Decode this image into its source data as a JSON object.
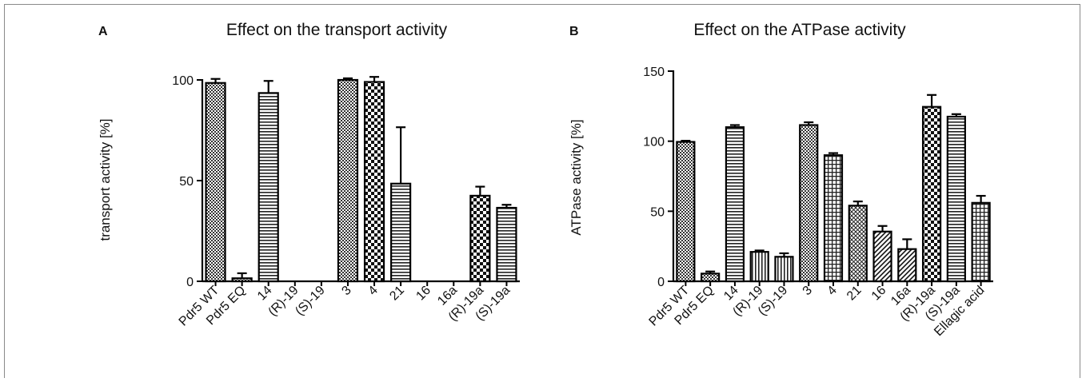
{
  "chart_data": [
    {
      "type": "bar",
      "panel": "A",
      "title": "Effect on the transport activity",
      "ylabel": "transport activity [%]",
      "xlabel": "",
      "ylim": [
        0,
        100
      ],
      "yticks": [
        "0",
        "50",
        "100"
      ],
      "categories": [
        "Pdr5 WT",
        "Pdr5 EQ",
        "14",
        "(R)-19",
        "(S)-19",
        "3",
        "4",
        "21",
        "16",
        "16a",
        "(R)-19a",
        "(S)-19a"
      ],
      "values": [
        98.5,
        1.5,
        93.5,
        0,
        0,
        100,
        99,
        48.5,
        0,
        0,
        42.5,
        36.5
      ],
      "errors": [
        2,
        2.5,
        6,
        0,
        0,
        0.8,
        2.5,
        28,
        0,
        0,
        4.5,
        1.5
      ],
      "patterns": [
        "dots",
        "dots",
        "hlines",
        "none",
        "none",
        "dots",
        "checker",
        "hlines",
        "none",
        "none",
        "checker",
        "hlines"
      ]
    },
    {
      "type": "bar",
      "panel": "B",
      "title": "Effect on the ATPase activity",
      "ylabel": "ATPase activity [%]",
      "xlabel": "",
      "ylim": [
        0,
        150
      ],
      "yticks": [
        "0",
        "50",
        "100",
        "150"
      ],
      "categories": [
        "Pdr5 WT",
        "Pdr5 EQ",
        "14",
        "(R)-19",
        "(S)-19",
        "3",
        "4",
        "21",
        "16",
        "16a",
        "(R)-19a",
        "(S)-19a",
        "Ellagic acid"
      ],
      "values": [
        99.5,
        5.5,
        110,
        21,
        17.5,
        111.5,
        90,
        54,
        35.5,
        23,
        124.5,
        117.5,
        56
      ],
      "errors": [
        0.8,
        1.5,
        1.5,
        1,
        2.5,
        2,
        1.5,
        3,
        4,
        7,
        8.5,
        1.8,
        5
      ],
      "patterns": [
        "dots",
        "dots",
        "hlines",
        "vlines",
        "vlines",
        "dots",
        "grid",
        "crosshatch",
        "diag",
        "diag",
        "checker",
        "hlines",
        "grid"
      ]
    }
  ]
}
